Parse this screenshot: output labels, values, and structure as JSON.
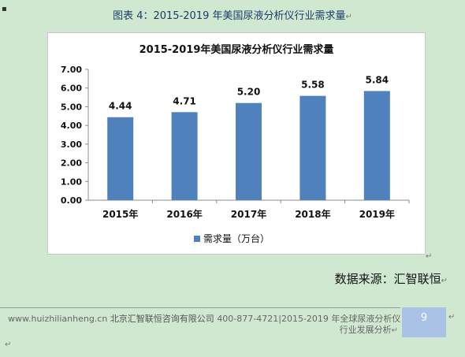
{
  "page": {
    "caption": "图表 4：2015-2019 年美国尿液分析仪行业需求量",
    "source": "数据来源：汇智联恒",
    "footer": {
      "left_line1_url": "www.huizhilianheng.cn",
      "left_line1_company": "北京汇智联恒咨询有限公司",
      "left_line1_rest": "400-877-4721|2015-2019 年全球尿液分析仪",
      "left_line2": "行业发展分析",
      "page_number": "9"
    }
  },
  "chart_data": {
    "type": "bar",
    "title": "2015-2019年美国尿液分析仪行业需求量",
    "categories": [
      "2015年",
      "2016年",
      "2017年",
      "2018年",
      "2019年"
    ],
    "series": [
      {
        "name": "需求量（万台）",
        "values": [
          4.44,
          4.71,
          5.2,
          5.58,
          5.84
        ]
      }
    ],
    "data_labels": [
      "4.44",
      "4.71",
      "5.20",
      "5.58",
      "5.84"
    ],
    "y_ticks": [
      "0.00",
      "1.00",
      "2.00",
      "3.00",
      "4.00",
      "5.00",
      "6.00",
      "7.00"
    ],
    "ylim": [
      0,
      7
    ],
    "grid": false,
    "legend_position": "bottom",
    "bar_color": "#4f81bd"
  }
}
